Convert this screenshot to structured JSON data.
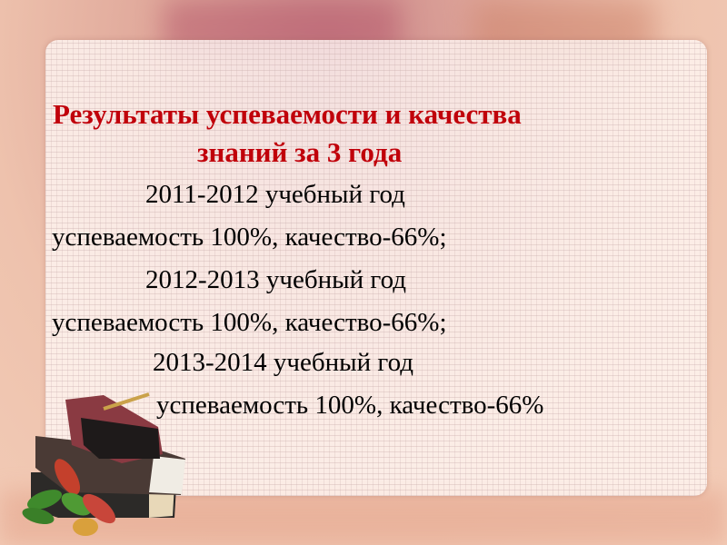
{
  "slide": {
    "title_line1": "Результаты успеваемости и качества",
    "title_line2": "знаний за 3 года",
    "entries": [
      {
        "year": "2011-2012 учебный год",
        "result": "успеваемость 100%, качество-66%;"
      },
      {
        "year": "2012-2013 учебный год",
        "result": "успеваемость 100%, качество-66%;"
      },
      {
        "year": "2013-2014 учебный год",
        "result": "успеваемость 100%, качество-66%"
      }
    ],
    "colors": {
      "title": "#c0000a",
      "text": "#000000"
    }
  }
}
